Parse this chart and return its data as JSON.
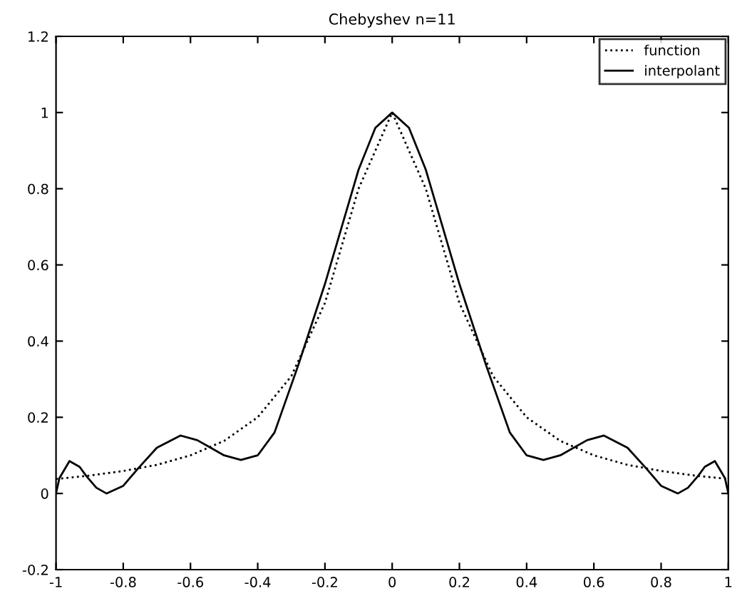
{
  "chart_data": {
    "type": "line",
    "title": "Chebyshev n=11",
    "series": [
      {
        "name": "function",
        "color": "#000000",
        "line_style": "dotted",
        "x": [
          -1,
          -0.9,
          -0.8,
          -0.7,
          -0.6,
          -0.5,
          -0.4,
          -0.3,
          -0.2,
          -0.1,
          0,
          0.1,
          0.2,
          0.3,
          0.4,
          0.5,
          0.6,
          0.7,
          0.8,
          0.9,
          1
        ],
        "values": [
          0.038,
          0.047,
          0.059,
          0.075,
          0.1,
          0.138,
          0.2,
          0.308,
          0.5,
          0.8,
          1,
          0.8,
          0.5,
          0.308,
          0.2,
          0.138,
          0.1,
          0.075,
          0.059,
          0.047,
          0.038
        ]
      },
      {
        "name": "interpolant",
        "color": "#000000",
        "line_style": "solid",
        "x": [
          -1,
          -0.99,
          -0.96,
          -0.93,
          -0.91,
          -0.88,
          -0.85,
          -0.8,
          -0.756,
          -0.7,
          -0.63,
          -0.58,
          -0.54,
          -0.5,
          -0.45,
          -0.4,
          -0.35,
          -0.28,
          -0.2,
          -0.15,
          -0.1,
          -0.05,
          0,
          0.05,
          0.1,
          0.15,
          0.2,
          0.28,
          0.35,
          0.4,
          0.45,
          0.5,
          0.54,
          0.58,
          0.63,
          0.7,
          0.756,
          0.8,
          0.85,
          0.88,
          0.91,
          0.93,
          0.96,
          0.99,
          1
        ],
        "values": [
          0.0,
          0.04,
          0.085,
          0.07,
          0.046,
          0.015,
          0.0,
          0.02,
          0.0655,
          0.12,
          0.152,
          0.14,
          0.12,
          0.1,
          0.088,
          0.1,
          0.16,
          0.335,
          0.55,
          0.7,
          0.85,
          0.96,
          1.0,
          0.96,
          0.85,
          0.7,
          0.55,
          0.335,
          0.16,
          0.1,
          0.088,
          0.1,
          0.12,
          0.14,
          0.152,
          0.12,
          0.0655,
          0.02,
          0.0,
          0.015,
          0.046,
          0.07,
          0.085,
          0.04,
          0.0
        ]
      }
    ],
    "xlim": [
      -1,
      1
    ],
    "xticks": [
      -1,
      -0.8,
      -0.6,
      -0.4,
      -0.2,
      0,
      0.2,
      0.4,
      0.6,
      0.8,
      1
    ],
    "ylim": [
      -0.2,
      1.2
    ],
    "yticks": [
      -0.2,
      0,
      0.2,
      0.4,
      0.6,
      0.8,
      1,
      1.2
    ],
    "grid": false,
    "legend": "top right",
    "marker": "none"
  }
}
